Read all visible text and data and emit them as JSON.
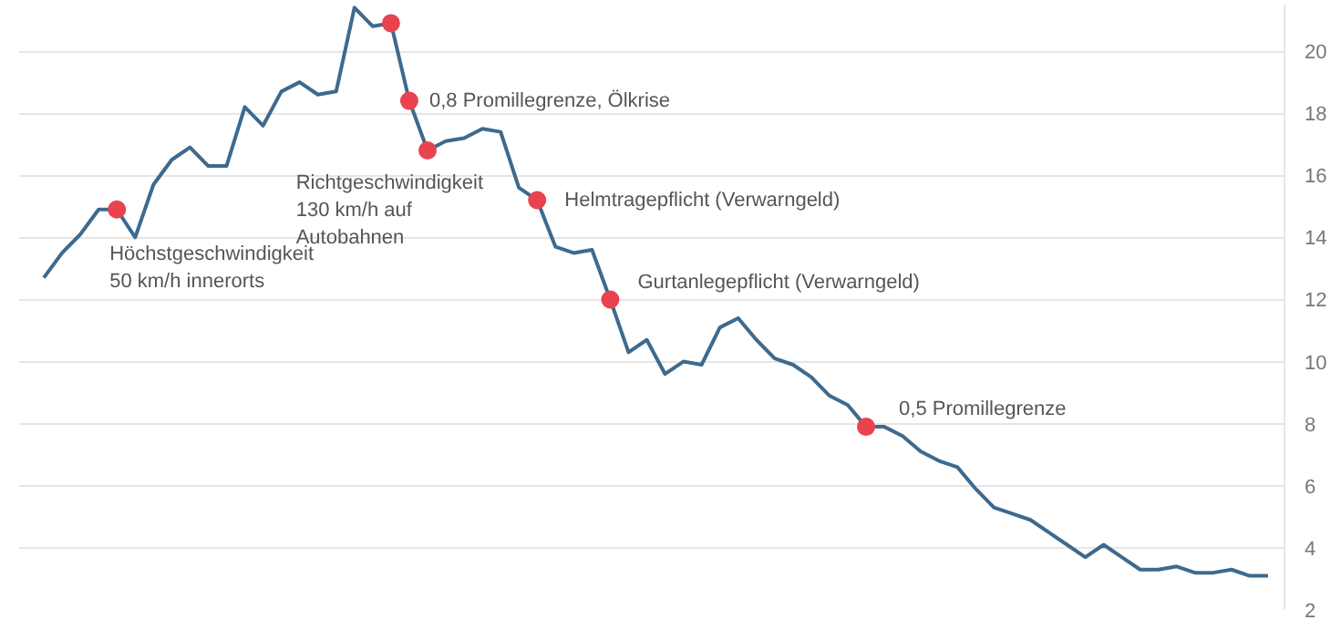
{
  "chart_data": {
    "type": "line",
    "categories": [
      null,
      null,
      null,
      null,
      null,
      null,
      null,
      null,
      null,
      null,
      null,
      null,
      null,
      null,
      null,
      null,
      null,
      null,
      null,
      null,
      null,
      null,
      null,
      null,
      null,
      null,
      null,
      null,
      null,
      null,
      null,
      null,
      null,
      null,
      null,
      null,
      null,
      null,
      null,
      null,
      null,
      null,
      null,
      null,
      null,
      null,
      null,
      null,
      null,
      null,
      null,
      null,
      null,
      null,
      null,
      null,
      null,
      null,
      null,
      null,
      null,
      null,
      null,
      null,
      null,
      null,
      null,
      null
    ],
    "series": [
      {
        "type": "line",
        "color": "#3d6a8e",
        "values": [
          12.7,
          13.5,
          14.1,
          14.9,
          14.9,
          14.0,
          15.7,
          16.5,
          16.9,
          16.3,
          16.3,
          18.2,
          17.6,
          18.7,
          19.0,
          18.6,
          18.7,
          21.4,
          20.8,
          20.9,
          18.4,
          16.8,
          17.1,
          17.2,
          17.5,
          17.4,
          15.6,
          15.2,
          13.7,
          13.5,
          13.6,
          12.0,
          10.3,
          10.7,
          9.6,
          10.0,
          9.9,
          11.1,
          11.4,
          10.7,
          10.1,
          9.9,
          9.5,
          8.9,
          8.6,
          7.9,
          7.9,
          7.6,
          7.1,
          6.8,
          6.6,
          5.9,
          5.3,
          5.1,
          4.9,
          4.5,
          4.1,
          3.7,
          4.1,
          3.7,
          3.3,
          3.3,
          3.4,
          3.2,
          3.2,
          3.3,
          3.1,
          3.1
        ]
      },
      {
        "type": "scatter",
        "color": "#e8434f",
        "values": [
          null,
          null,
          null,
          null,
          14.9,
          null,
          null,
          null,
          null,
          null,
          null,
          null,
          null,
          null,
          null,
          null,
          null,
          null,
          null,
          20.9,
          18.4,
          16.8,
          null,
          null,
          null,
          null,
          null,
          15.2,
          null,
          null,
          null,
          12.0,
          null,
          null,
          null,
          null,
          null,
          null,
          null,
          null,
          null,
          null,
          null,
          null,
          null,
          7.9,
          null,
          null,
          null,
          null,
          null,
          null,
          null,
          null,
          null,
          null,
          null,
          null,
          null,
          null,
          null,
          null,
          null,
          null,
          null,
          null,
          null,
          null
        ]
      }
    ],
    "annotations": [
      "Höchstgeschwindigkeit\n50 km/h innerorts",
      "0,8 Promillegrenze, Ölkrise",
      "Richtgeschwindigkeit\n130 km/h auf\nAutobahnen",
      "Helmtragepflicht (Verwarngeld)",
      "Gurtanlegepflicht (Verwarngeld)",
      "0,5 Promillegrenze"
    ],
    "ylim": [
      2,
      21.5
    ],
    "yticks": [
      2,
      4,
      6,
      8,
      10,
      12,
      14,
      16,
      18,
      20
    ],
    "grid": "y",
    "tick_labels": "y"
  }
}
